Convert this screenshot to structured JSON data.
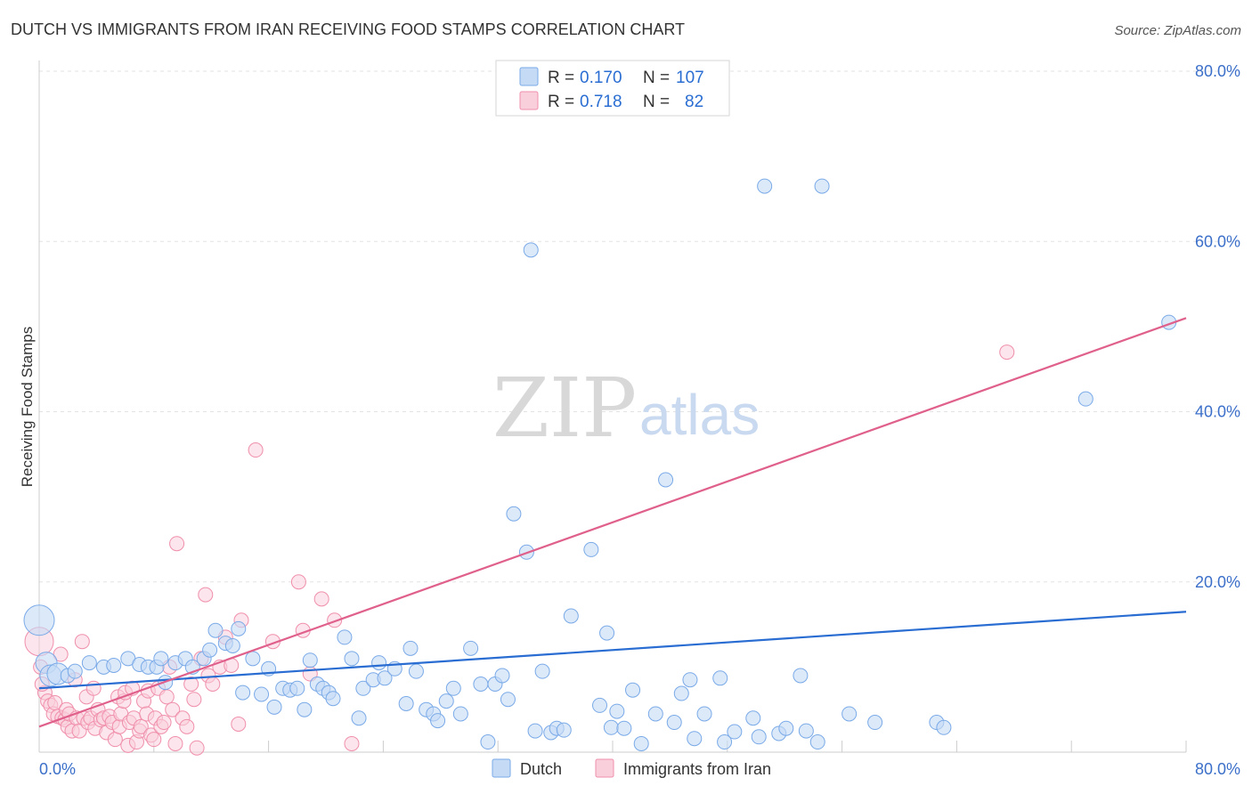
{
  "title": "DUTCH VS IMMIGRANTS FROM IRAN RECEIVING FOOD STAMPS CORRELATION CHART",
  "source": "Source: ZipAtlas.com",
  "watermark": {
    "zip": "ZIP",
    "atlas": "atlas"
  },
  "colors": {
    "dutch": "#7aaae8",
    "dutch_fill": "#c5dbf5",
    "dutch_line": "#2a6dd2",
    "iran": "#f08fab",
    "iran_fill": "#f9cfdc",
    "iran_line": "#e0608c",
    "tick": "#3b6fc9",
    "grid": "#e3e3e3"
  },
  "legend": {
    "rows": [
      {
        "r_label": "R = ",
        "r_value": "0.170",
        "n_label": "N = ",
        "n_value": "107"
      },
      {
        "r_label": "R = ",
        "r_value": "0.718",
        "n_label": "N = ",
        "n_value": "82"
      }
    ]
  },
  "bottom_legend": {
    "items": [
      "Dutch",
      "Immigrants from Iran"
    ]
  },
  "chart_data": {
    "type": "scatter",
    "title": "DUTCH VS IMMIGRANTS FROM IRAN RECEIVING FOOD STAMPS CORRELATION CHART",
    "xlabel": "",
    "ylabel": "Receiving Food Stamps",
    "xlim": [
      0,
      80
    ],
    "ylim": [
      0,
      80
    ],
    "x_tick_labels": [
      "0.0%",
      "80.0%"
    ],
    "y_tick_labels": [
      "20.0%",
      "40.0%",
      "60.0%",
      "80.0%"
    ],
    "y_ticks": [
      20,
      40,
      60,
      80
    ],
    "x_ticks_minor": [
      0,
      8,
      16,
      24,
      32,
      40,
      48,
      56,
      64,
      72,
      80
    ],
    "grid": true,
    "legend_position": "top-center",
    "series": [
      {
        "name": "Dutch",
        "r": 0.17,
        "n": 107,
        "trend": {
          "x": [
            0,
            80
          ],
          "y": [
            7.5,
            16.5
          ]
        },
        "points": [
          [
            0.0,
            15.5
          ],
          [
            0.5,
            10.5
          ],
          [
            0.8,
            9.0
          ],
          [
            1.3,
            9.2
          ],
          [
            2.0,
            9.0
          ],
          [
            2.5,
            9.5
          ],
          [
            3.5,
            10.5
          ],
          [
            4.5,
            10.0
          ],
          [
            5.2,
            10.2
          ],
          [
            6.2,
            11.0
          ],
          [
            7.0,
            10.3
          ],
          [
            7.6,
            10.0
          ],
          [
            8.2,
            10.0
          ],
          [
            8.5,
            11.0
          ],
          [
            8.8,
            8.2
          ],
          [
            9.5,
            10.5
          ],
          [
            10.2,
            11.0
          ],
          [
            10.7,
            10.0
          ],
          [
            11.5,
            11.0
          ],
          [
            11.9,
            12.0
          ],
          [
            12.3,
            14.3
          ],
          [
            13.0,
            12.8
          ],
          [
            13.5,
            12.5
          ],
          [
            13.9,
            14.5
          ],
          [
            14.2,
            7.0
          ],
          [
            14.9,
            11.0
          ],
          [
            15.5,
            6.8
          ],
          [
            16.0,
            9.8
          ],
          [
            16.4,
            5.3
          ],
          [
            17.0,
            7.5
          ],
          [
            17.5,
            7.3
          ],
          [
            18.0,
            7.5
          ],
          [
            18.5,
            5.0
          ],
          [
            18.9,
            10.8
          ],
          [
            19.4,
            8.0
          ],
          [
            19.8,
            7.5
          ],
          [
            20.2,
            7.0
          ],
          [
            20.5,
            6.3
          ],
          [
            21.3,
            13.5
          ],
          [
            21.8,
            11.0
          ],
          [
            22.3,
            4.0
          ],
          [
            22.6,
            7.5
          ],
          [
            23.3,
            8.5
          ],
          [
            23.7,
            10.5
          ],
          [
            24.1,
            8.7
          ],
          [
            24.8,
            9.8
          ],
          [
            25.6,
            5.7
          ],
          [
            25.9,
            12.2
          ],
          [
            26.3,
            9.5
          ],
          [
            27.0,
            5.0
          ],
          [
            27.5,
            4.5
          ],
          [
            27.8,
            3.7
          ],
          [
            28.4,
            6.0
          ],
          [
            28.9,
            7.5
          ],
          [
            29.4,
            4.5
          ],
          [
            30.1,
            12.2
          ],
          [
            30.8,
            8.0
          ],
          [
            31.3,
            1.2
          ],
          [
            31.8,
            8.0
          ],
          [
            32.3,
            9.0
          ],
          [
            32.7,
            6.2
          ],
          [
            33.1,
            28.0
          ],
          [
            34.0,
            23.5
          ],
          [
            34.3,
            59.0
          ],
          [
            34.6,
            2.5
          ],
          [
            35.1,
            9.5
          ],
          [
            35.7,
            2.3
          ],
          [
            36.1,
            2.8
          ],
          [
            36.6,
            2.6
          ],
          [
            37.1,
            16.0
          ],
          [
            38.5,
            23.8
          ],
          [
            39.1,
            5.5
          ],
          [
            39.6,
            14.0
          ],
          [
            39.9,
            2.9
          ],
          [
            40.3,
            4.8
          ],
          [
            40.8,
            2.8
          ],
          [
            41.4,
            7.3
          ],
          [
            42.0,
            1.0
          ],
          [
            43.0,
            4.5
          ],
          [
            43.7,
            32.0
          ],
          [
            44.3,
            3.5
          ],
          [
            44.8,
            6.9
          ],
          [
            45.4,
            8.5
          ],
          [
            45.7,
            1.6
          ],
          [
            46.4,
            4.5
          ],
          [
            47.5,
            8.7
          ],
          [
            47.8,
            1.2
          ],
          [
            48.5,
            2.4
          ],
          [
            49.8,
            4.0
          ],
          [
            50.2,
            1.8
          ],
          [
            50.6,
            66.5
          ],
          [
            51.6,
            2.2
          ],
          [
            52.1,
            2.8
          ],
          [
            53.1,
            9.0
          ],
          [
            53.5,
            2.5
          ],
          [
            54.3,
            1.2
          ],
          [
            54.6,
            66.5
          ],
          [
            56.5,
            4.5
          ],
          [
            58.3,
            3.5
          ],
          [
            62.6,
            3.5
          ],
          [
            63.1,
            2.9
          ],
          [
            73.0,
            41.5
          ],
          [
            78.8,
            50.5
          ]
        ]
      },
      {
        "name": "Immigrants from Iran",
        "r": 0.718,
        "n": 82,
        "trend": {
          "x": [
            0,
            80
          ],
          "y": [
            3.0,
            51.0
          ]
        },
        "points": [
          [
            0.0,
            13.0
          ],
          [
            0.1,
            10.0
          ],
          [
            0.4,
            7.0
          ],
          [
            0.6,
            6.0
          ],
          [
            0.8,
            5.5
          ],
          [
            1.0,
            4.5
          ],
          [
            1.1,
            5.8
          ],
          [
            1.3,
            4.2
          ],
          [
            1.5,
            11.5
          ],
          [
            1.6,
            4.0
          ],
          [
            1.8,
            3.8
          ],
          [
            1.9,
            5.0
          ],
          [
            2.0,
            3.0
          ],
          [
            2.1,
            4.5
          ],
          [
            2.3,
            2.5
          ],
          [
            2.5,
            8.5
          ],
          [
            2.6,
            4.0
          ],
          [
            2.8,
            2.5
          ],
          [
            3.0,
            13.0
          ],
          [
            3.1,
            4.0
          ],
          [
            3.3,
            6.5
          ],
          [
            3.4,
            3.5
          ],
          [
            3.6,
            4.0
          ],
          [
            3.8,
            7.5
          ],
          [
            3.9,
            2.8
          ],
          [
            4.1,
            5.0
          ],
          [
            4.3,
            3.8
          ],
          [
            4.5,
            4.0
          ],
          [
            4.7,
            2.3
          ],
          [
            4.9,
            4.2
          ],
          [
            5.1,
            3.5
          ],
          [
            5.3,
            1.5
          ],
          [
            5.5,
            6.5
          ],
          [
            5.6,
            3.0
          ],
          [
            5.7,
            4.5
          ],
          [
            5.9,
            6.0
          ],
          [
            6.0,
            7.0
          ],
          [
            6.2,
            0.8
          ],
          [
            6.3,
            3.5
          ],
          [
            6.5,
            7.5
          ],
          [
            6.6,
            4.0
          ],
          [
            6.8,
            1.2
          ],
          [
            7.0,
            2.5
          ],
          [
            7.1,
            3.0
          ],
          [
            7.3,
            6.0
          ],
          [
            7.5,
            4.5
          ],
          [
            7.6,
            7.2
          ],
          [
            7.8,
            2.0
          ],
          [
            8.0,
            1.5
          ],
          [
            8.1,
            4.0
          ],
          [
            8.3,
            7.5
          ],
          [
            8.5,
            3.0
          ],
          [
            8.7,
            3.5
          ],
          [
            8.9,
            6.5
          ],
          [
            9.1,
            10.0
          ],
          [
            9.3,
            5.0
          ],
          [
            9.5,
            1.0
          ],
          [
            9.6,
            24.5
          ],
          [
            10.0,
            4.0
          ],
          [
            10.3,
            3.0
          ],
          [
            10.6,
            8.0
          ],
          [
            10.8,
            6.2
          ],
          [
            11.0,
            0.5
          ],
          [
            11.3,
            11.0
          ],
          [
            11.6,
            18.5
          ],
          [
            11.8,
            9.0
          ],
          [
            12.1,
            8.0
          ],
          [
            12.6,
            10.0
          ],
          [
            13.0,
            13.5
          ],
          [
            13.4,
            10.2
          ],
          [
            13.9,
            3.3
          ],
          [
            14.1,
            15.5
          ],
          [
            15.1,
            35.5
          ],
          [
            16.3,
            13.0
          ],
          [
            18.1,
            20.0
          ],
          [
            18.4,
            14.3
          ],
          [
            18.9,
            9.2
          ],
          [
            19.7,
            18.0
          ],
          [
            20.6,
            15.5
          ],
          [
            21.8,
            1.0
          ],
          [
            67.5,
            47.0
          ],
          [
            0.2,
            8.0
          ]
        ]
      }
    ]
  }
}
